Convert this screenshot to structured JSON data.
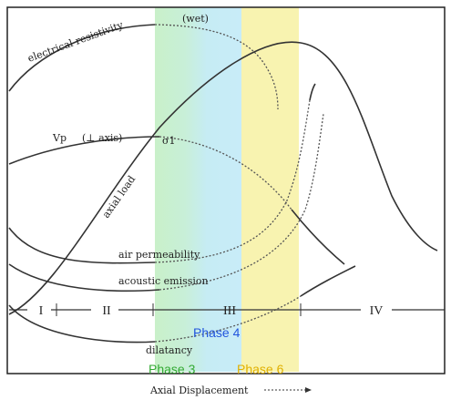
{
  "diagram": {
    "curve_labels": {
      "resistivity": "electrical resistivity",
      "wet": "(wet)",
      "vp": "Vp",
      "vp_axis": "(⊥ axis)",
      "axial_load": "axial load",
      "sigma": "σ1",
      "air": "air permeability",
      "acoustic": "acoustic emission",
      "dilatancy": "dilatancy"
    },
    "stages": [
      "I",
      "II",
      "III",
      "IV"
    ],
    "phases": [
      "Phase 4",
      "Phase 3",
      "Phase 6"
    ],
    "x_axis_label": "Axial Displacement"
  }
}
